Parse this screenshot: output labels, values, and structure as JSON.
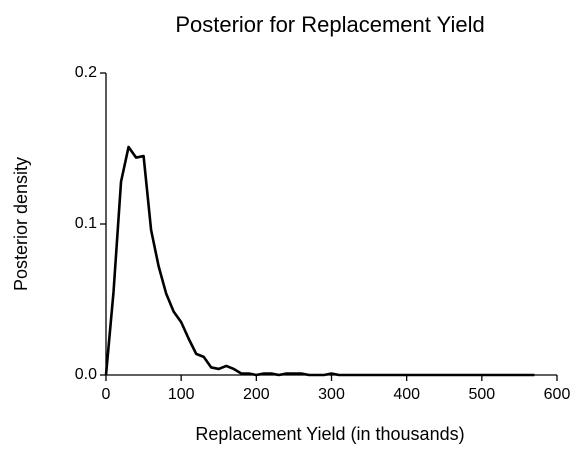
{
  "chart_data": {
    "type": "line",
    "title": "Posterior for Replacement Yield",
    "x_label": "Replacement Yield (in thousands)",
    "y_label": "Posterior density",
    "xlim": [
      0,
      600
    ],
    "xticks": [
      0,
      100,
      200,
      300,
      400,
      500,
      600
    ],
    "ylim": [
      0,
      0.2
    ],
    "yticks": [
      {
        "value": 0,
        "label": "0.0"
      },
      0.1,
      0.2
    ],
    "color": "#000000",
    "x": [
      0,
      10,
      20,
      30,
      40,
      50,
      60,
      70,
      80,
      90,
      100,
      110,
      120,
      130,
      140,
      150,
      160,
      170,
      180,
      190,
      200,
      210,
      220,
      230,
      240,
      250,
      260,
      270,
      280,
      290,
      300,
      310,
      320,
      330,
      340,
      350,
      360,
      370,
      380,
      390,
      400,
      410,
      420,
      430,
      440,
      450,
      460,
      470,
      480,
      490,
      500,
      510,
      520,
      530,
      540,
      550,
      560,
      570
    ],
    "values": [
      0,
      0.055,
      0.128,
      0.151,
      0.144,
      0.145,
      0.096,
      0.072,
      0.054,
      0.042,
      0.035,
      0.024,
      0.014,
      0.012,
      0.005,
      0.004,
      0.006,
      0.004,
      0.001,
      0.001,
      0,
      0.001,
      0.001,
      0,
      0.001,
      0.001,
      0.001,
      0,
      0,
      0,
      0.001,
      0,
      0,
      0,
      0,
      0,
      0,
      0,
      0,
      0,
      0,
      0,
      0,
      0,
      0,
      0,
      0,
      0,
      0,
      0,
      0,
      0,
      0,
      0,
      0,
      0,
      0,
      0
    ]
  }
}
